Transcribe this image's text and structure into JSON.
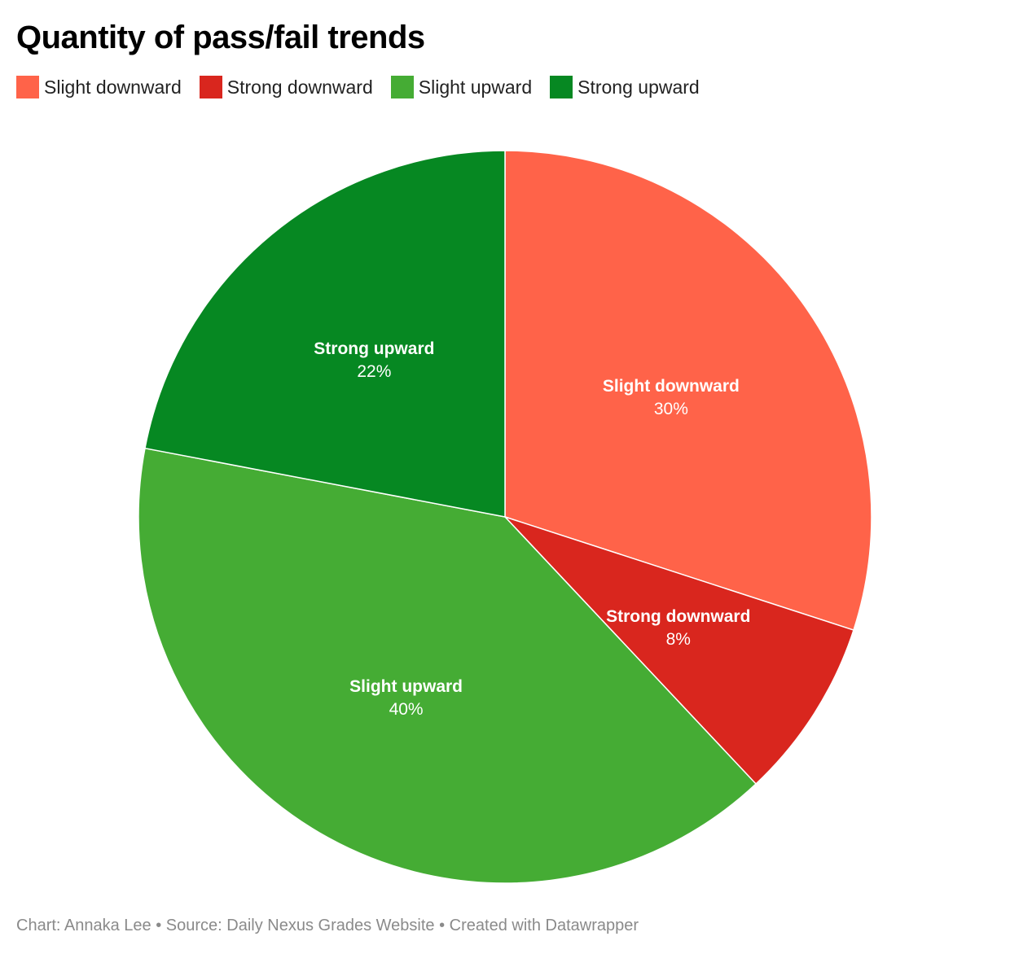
{
  "title": "Quantity of pass/fail trends",
  "footer": "Chart: Annaka Lee • Source: Daily Nexus Grades Website • Created with Datawrapper",
  "chart_data": {
    "type": "pie",
    "title": "Quantity of pass/fail trends",
    "unit": "%",
    "legend_position": "top-left",
    "start": "12 o'clock, clockwise",
    "slices": [
      {
        "label": "Slight downward",
        "value": 30,
        "display": "30%",
        "color": "#ff6349"
      },
      {
        "label": "Strong downward",
        "value": 8,
        "display": "8%",
        "color": "#d9261e"
      },
      {
        "label": "Slight upward",
        "value": 40,
        "display": "40%",
        "color": "#45ac34"
      },
      {
        "label": "Strong upward",
        "value": 22,
        "display": "22%",
        "color": "#068822"
      }
    ]
  }
}
